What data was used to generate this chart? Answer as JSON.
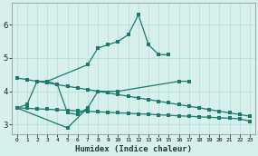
{
  "xlabel": "Humidex (Indice chaleur)",
  "series": [
    {
      "x": [
        0,
        1,
        2,
        3,
        7,
        8,
        9,
        10,
        11,
        12,
        13,
        14,
        15
      ],
      "y": [
        3.5,
        3.6,
        4.3,
        4.3,
        4.8,
        5.3,
        5.4,
        5.5,
        5.7,
        6.3,
        5.4,
        5.1,
        5.1
      ]
    },
    {
      "x": [
        3,
        4,
        5,
        6,
        7
      ],
      "y": [
        4.3,
        4.2,
        3.35,
        3.3,
        3.5
      ]
    },
    {
      "x": [
        0,
        5,
        7,
        8,
        10,
        16,
        17
      ],
      "y": [
        3.5,
        2.9,
        3.5,
        4.0,
        4.0,
        4.3,
        4.3
      ]
    },
    {
      "x": [
        0,
        1,
        2,
        3,
        4,
        5,
        6,
        7,
        8,
        9,
        10,
        11,
        12,
        13,
        14,
        15,
        16,
        17,
        18,
        19,
        20,
        21,
        22,
        23
      ],
      "y": [
        4.4,
        4.35,
        4.3,
        4.25,
        4.2,
        4.15,
        4.1,
        4.05,
        4.0,
        3.95,
        3.9,
        3.85,
        3.8,
        3.75,
        3.7,
        3.65,
        3.6,
        3.55,
        3.5,
        3.45,
        3.4,
        3.35,
        3.3,
        3.25
      ]
    },
    {
      "x": [
        0,
        1,
        2,
        3,
        4,
        5,
        6,
        7,
        8,
        9,
        10,
        11,
        12,
        13,
        14,
        15,
        16,
        17,
        18,
        19,
        20,
        21,
        22,
        23
      ],
      "y": [
        3.5,
        3.49,
        3.47,
        3.46,
        3.44,
        3.43,
        3.41,
        3.4,
        3.38,
        3.37,
        3.35,
        3.34,
        3.32,
        3.31,
        3.29,
        3.28,
        3.26,
        3.25,
        3.23,
        3.22,
        3.2,
        3.19,
        3.17,
        3.1
      ]
    }
  ],
  "line_color": "#1a7a6e",
  "bg_color": "#d8f0ec",
  "grid_color": "#b0ddd8",
  "ylim": [
    2.7,
    6.65
  ],
  "yticks": [
    3,
    4,
    5,
    6
  ],
  "xlim": [
    -0.5,
    23.5
  ],
  "xtick_labels": [
    "0",
    "1",
    "2",
    "3",
    "4",
    "5",
    "6",
    "7",
    "8",
    "9",
    "10",
    "11",
    "12",
    "13",
    "14",
    "15",
    "16",
    "17",
    "18",
    "19",
    "20",
    "21",
    "22",
    "23"
  ]
}
